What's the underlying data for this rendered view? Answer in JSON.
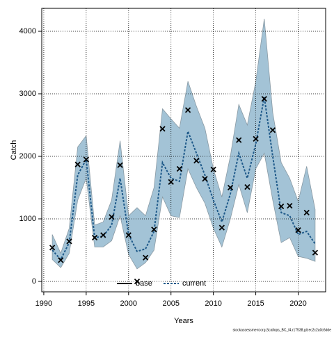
{
  "chart_data": {
    "type": "line",
    "x": [
      1991,
      1992,
      1993,
      1994,
      1995,
      1996,
      1997,
      1998,
      1999,
      2000,
      2001,
      2002,
      2003,
      2004,
      2005,
      2006,
      2007,
      2008,
      2009,
      2010,
      2011,
      2012,
      2013,
      2014,
      2015,
      2016,
      2017,
      2018,
      2019,
      2020,
      2021,
      2022
    ],
    "observed": {
      "color": "#000000",
      "values": [
        540,
        340,
        640,
        1870,
        1950,
        700,
        740,
        1030,
        1860,
        740,
        0,
        380,
        830,
        2440,
        1590,
        1800,
        2740,
        1930,
        1640,
        1790,
        860,
        1500,
        2260,
        1510,
        2280,
        2920,
        2420,
        1200,
        1210,
        820,
        1100,
        460
      ]
    },
    "current": {
      "name": "current",
      "color": "#1f5a8a",
      "values": [
        500,
        350,
        620,
        1700,
        1950,
        700,
        720,
        900,
        1650,
        750,
        480,
        520,
        800,
        1900,
        1650,
        1600,
        2400,
        2050,
        1700,
        1300,
        950,
        1400,
        2050,
        1650,
        2200,
        2950,
        2000,
        1100,
        1050,
        750,
        800,
        600
      ]
    },
    "band": {
      "color": "#a3c3d6",
      "upper": [
        750,
        450,
        850,
        2150,
        2330,
        900,
        950,
        1300,
        2250,
        1050,
        1180,
        1050,
        1500,
        2760,
        2600,
        2450,
        3200,
        2800,
        2450,
        1800,
        1350,
        2000,
        2830,
        2500,
        3200,
        4200,
        2700,
        1900,
        1650,
        1280,
        1840,
        1150
      ],
      "lower": [
        350,
        220,
        450,
        1300,
        1650,
        550,
        550,
        650,
        1050,
        430,
        200,
        300,
        500,
        1350,
        1050,
        1020,
        1800,
        1500,
        1250,
        850,
        550,
        1000,
        1550,
        1100,
        1800,
        2050,
        1300,
        620,
        700,
        400,
        370,
        320
      ]
    },
    "legend": [
      {
        "name": "base",
        "color": "#000000",
        "dash": false
      },
      {
        "name": "current",
        "color": "#1f5a8a",
        "dash": true
      }
    ],
    "xlabel": "Years",
    "ylabel": "Catch",
    "footnote": "stockassessment.org,Scallops_BC_f4,r17538,git:ec2c2a0c6dde",
    "xlim": [
      1989.76,
      2023.24
    ],
    "ylim": [
      -167,
      4367
    ],
    "xticks": [
      1990,
      1995,
      2000,
      2005,
      2010,
      2015,
      2020
    ],
    "yticks": [
      0,
      1000,
      2000,
      3000,
      4000
    ],
    "grid": true
  }
}
